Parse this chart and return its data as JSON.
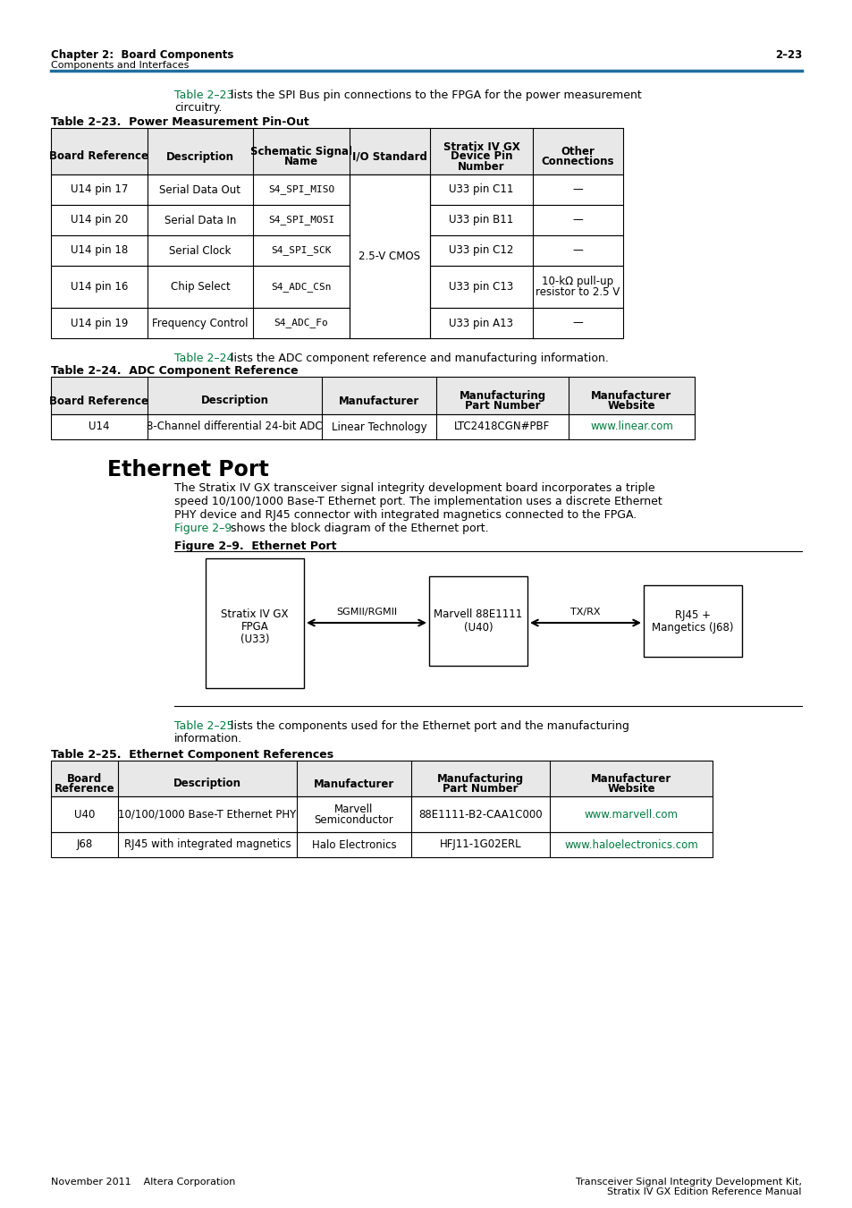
{
  "bg_color": "#ffffff",
  "header_top_text_left": "Chapter 2:  Board Components",
  "header_top_text_right": "2–23",
  "header_sub_text": "Components and Interfaces",
  "header_line_color": "#1f6ea0",
  "intro_link": "Table 2–23",
  "intro_rest": " lists the SPI Bus pin connections to the FPGA for the power measurement",
  "intro_line2": "circuitry.",
  "table23_title": "Table 2–23.  Power Measurement Pin-Out",
  "table23_headers": [
    "Board Reference",
    "Description",
    "Schematic Signal\nName",
    "I/O Standard",
    "Stratix IV GX\nDevice Pin\nNumber",
    "Other\nConnections"
  ],
  "table23_rows": [
    [
      "U14 pin 17",
      "Serial Data Out",
      "S4_SPI_MISO",
      "2.5-V CMOS",
      "U33 pin C11",
      "—"
    ],
    [
      "U14 pin 20",
      "Serial Data In",
      "S4_SPI_MOSI",
      "2.5-V CMOS",
      "U33 pin B11",
      "—"
    ],
    [
      "U14 pin 18",
      "Serial Clock",
      "S4_SPI_SCK",
      "2.5-V CMOS",
      "U33 pin C12",
      "—"
    ],
    [
      "U14 pin 16",
      "Chip Select",
      "S4_ADC_CSn",
      "2.5-V CMOS",
      "U33 pin C13",
      "10-kΩ pull-up\nresistor to 2.5 V"
    ],
    [
      "U14 pin 19",
      "Frequency Control",
      "S4_ADC_Fo",
      "2.5-V CMOS",
      "U33 pin A13",
      "—"
    ]
  ],
  "mid_link": "Table 2–24",
  "mid_rest": " lists the ADC component reference and manufacturing information.",
  "table24_title": "Table 2–24.  ADC Component Reference",
  "table24_headers": [
    "Board Reference",
    "Description",
    "Manufacturer",
    "Manufacturing\nPart Number",
    "Manufacturer\nWebsite"
  ],
  "table24_rows": [
    [
      "U14",
      "8-Channel differential 24-bit ADC",
      "Linear Technology",
      "LTC2418CGN#PBF",
      "www.linear.com"
    ]
  ],
  "section_title": "Ethernet Port",
  "section_body": [
    "The Stratix IV GX transceiver signal integrity development board incorporates a triple",
    "speed 10/100/1000 Base-T Ethernet port. The implementation uses a discrete Ethernet",
    "PHY device and RJ45 connector with integrated magnetics connected to the FPGA."
  ],
  "section_link_line_prefix": "",
  "section_link": "Figure 2–9",
  "section_link_suffix": " shows the block diagram of the Ethernet port.",
  "fig_title": "Figure 2–9.  Ethernet Port",
  "table25_link": "Table 2–25",
  "table25_link_rest": " lists the components used for the Ethernet port and the manufacturing",
  "table25_link_line2": "information.",
  "table25_title": "Table 2–25.  Ethernet Component References",
  "table25_headers": [
    "Board\nReference",
    "Description",
    "Manufacturer",
    "Manufacturing\nPart Number",
    "Manufacturer\nWebsite"
  ],
  "table25_rows": [
    [
      "U40",
      "10/100/1000 Base-T Ethernet PHY",
      "Marvell\nSemiconductor",
      "88E1111-B2-CAA1C000",
      "www.marvell.com"
    ],
    [
      "J68",
      "RJ45 with integrated magnetics",
      "Halo Electronics",
      "HFJ11-1G02ERL",
      "www.haloelectronics.com"
    ]
  ],
  "footer_left": "November 2011    Altera Corporation",
  "footer_right_line1": "Transceiver Signal Integrity Development Kit,",
  "footer_right_line2": "Stratix IV GX Edition Reference Manual",
  "link_color": "#007b3f",
  "header_color": "#1f6ea0",
  "table_hdr_bg": "#e8e8e8"
}
